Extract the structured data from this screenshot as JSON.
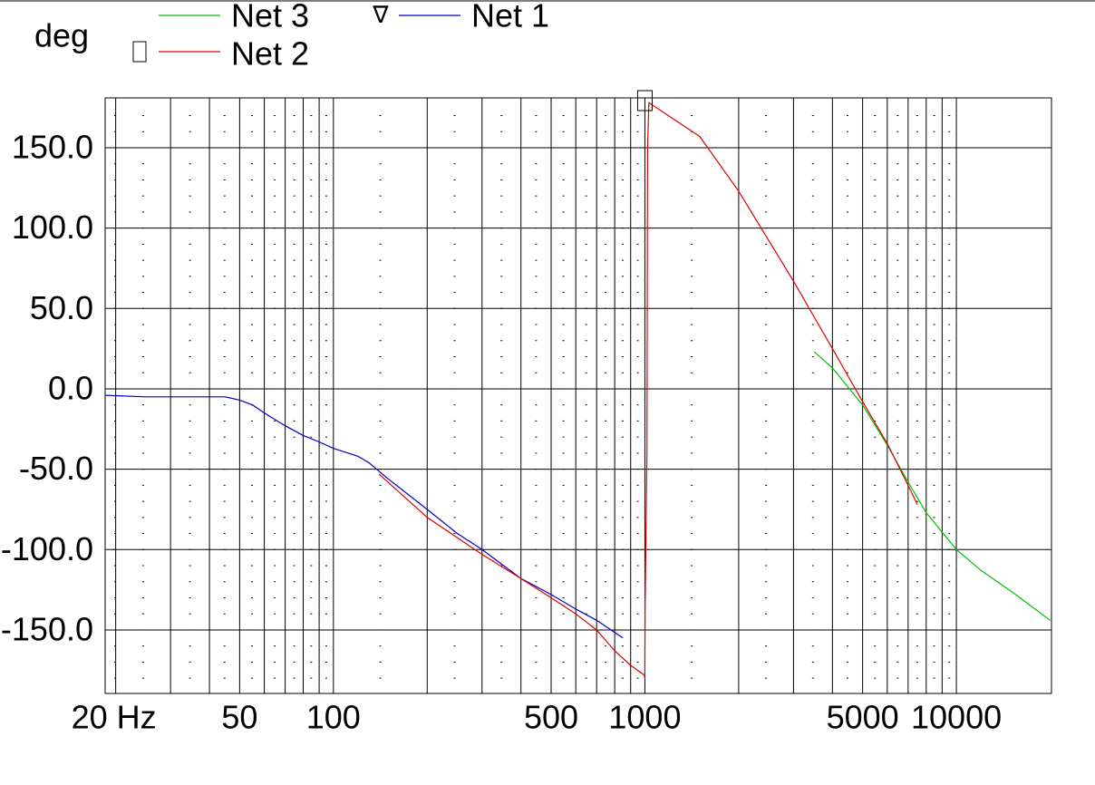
{
  "chart_data": {
    "type": "line",
    "y_label": "deg",
    "xscale": "log",
    "xlim": [
      18.5,
      20200
    ],
    "ylim": [
      -189.5,
      181
    ],
    "xticks": [
      {
        "value": 20,
        "label": "20 Hz"
      },
      50,
      100,
      500,
      1000,
      5000,
      10000
    ],
    "xgrid": [
      20,
      30,
      40,
      50,
      60,
      70,
      80,
      90,
      100,
      200,
      300,
      400,
      500,
      600,
      700,
      800,
      900,
      1000,
      2000,
      3000,
      4000,
      5000,
      6000,
      7000,
      8000,
      9000,
      10000
    ],
    "yticks": [
      {
        "value": 150,
        "label": "150.0"
      },
      {
        "value": 100,
        "label": "100.0"
      },
      {
        "value": 50,
        "label": "50.0"
      },
      {
        "value": 0,
        "label": "0.0"
      },
      {
        "value": -50,
        "label": "-50.0"
      },
      {
        "value": -100,
        "label": "-100.0"
      },
      {
        "value": -150,
        "label": "-150.0"
      }
    ],
    "grid": true,
    "series": [
      {
        "name": "Net 3",
        "color": "#00c000",
        "x": [
          3500,
          4000,
          5000,
          6000,
          7000,
          8000,
          10000,
          12000,
          15000,
          20000
        ],
        "values": [
          23,
          13,
          -10,
          -35,
          -58,
          -77,
          -100,
          -113,
          -126,
          -144
        ]
      },
      {
        "name": "Net 1",
        "color": "#0000c0",
        "x": [
          18.5,
          25,
          30,
          40,
          45,
          50,
          55,
          60,
          70,
          80,
          90,
          100,
          120,
          130,
          150,
          200,
          250,
          300,
          400,
          500,
          600,
          700,
          850
        ],
        "values": [
          -4,
          -5,
          -5,
          -5,
          -5,
          -7,
          -10,
          -15,
          -23,
          -29,
          -33,
          -37,
          -42,
          -46,
          -56,
          -75,
          -90,
          -100,
          -118,
          -128,
          -137,
          -144,
          -155
        ]
      },
      {
        "name": "Net 2",
        "color": "#e00000",
        "x": [
          140,
          200,
          300,
          400,
          500,
          600,
          700,
          800,
          900,
          995,
          1000,
          1002,
          1015,
          1020,
          1030,
          1500,
          2000,
          3000,
          4000,
          5000,
          6000,
          7000,
          7500
        ],
        "values": [
          -53,
          -80,
          -103,
          -118,
          -130,
          -140,
          -150,
          -163,
          -172,
          -178,
          -180,
          -135,
          -40,
          150,
          178,
          157,
          123,
          67,
          25,
          -8,
          -34,
          -60,
          -72
        ]
      }
    ]
  }
}
